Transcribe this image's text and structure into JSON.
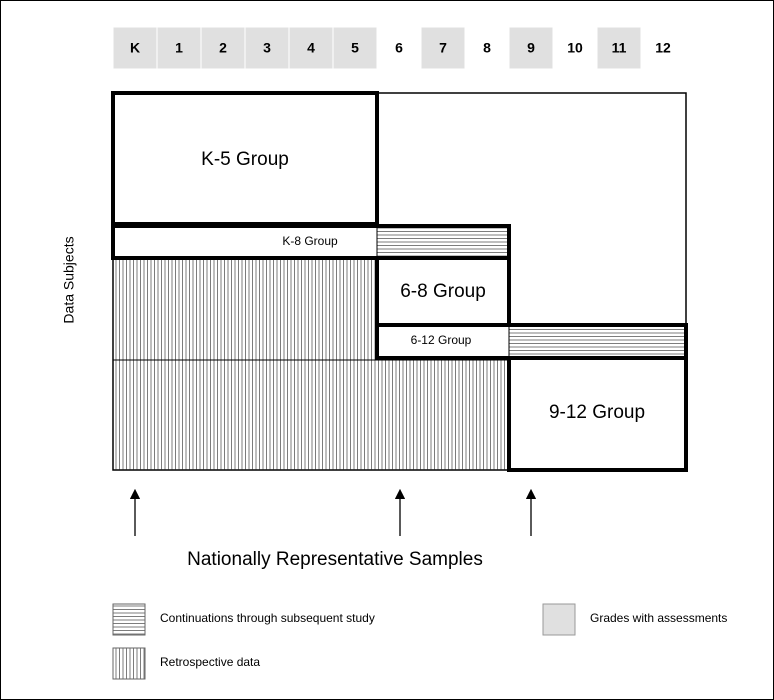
{
  "grades": [
    {
      "label": "K",
      "assessed": true
    },
    {
      "label": "1",
      "assessed": true
    },
    {
      "label": "2",
      "assessed": true
    },
    {
      "label": "3",
      "assessed": true
    },
    {
      "label": "4",
      "assessed": true
    },
    {
      "label": "5",
      "assessed": true
    },
    {
      "label": "6",
      "assessed": false
    },
    {
      "label": "7",
      "assessed": true
    },
    {
      "label": "8",
      "assessed": false
    },
    {
      "label": "9",
      "assessed": true
    },
    {
      "label": "10",
      "assessed": false
    },
    {
      "label": "11",
      "assessed": true
    },
    {
      "label": "12",
      "assessed": false
    }
  ],
  "y_label": "Data Subjects",
  "groups": {
    "k5": "K-5 Group",
    "k8": "K-8 Group",
    "g68": "6-8 Group",
    "g612": "6-12 Group",
    "g912": "9-12 Group"
  },
  "arrows_caption": "Nationally Representative Samples",
  "legend": {
    "continuations": "Continuations through subsequent study",
    "retrospective": "Retrospective data",
    "assessed": "Grades with assessments"
  }
}
